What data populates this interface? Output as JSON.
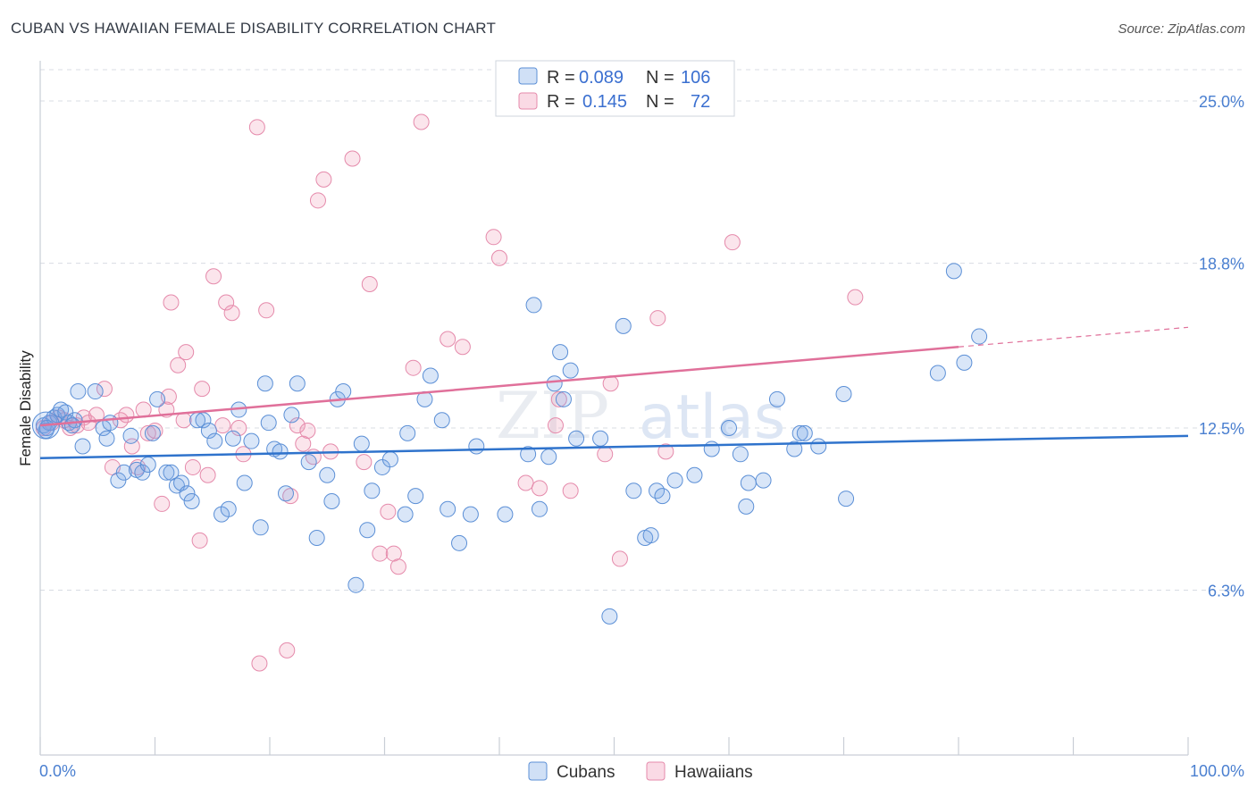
{
  "title": "CUBAN VS HAWAIIAN FEMALE DISABILITY CORRELATION CHART",
  "source": "Source: ZipAtlas.com",
  "colors": {
    "cubans_fill": "rgba(120,165,230,0.28)",
    "cubans_stroke": "#5b8fd6",
    "cubans_line": "#2f73cc",
    "hawaiians_fill": "rgba(240,150,180,0.25)",
    "hawaiians_stroke": "#e58aab",
    "hawaiians_line": "#e0709a",
    "grid": "#d8dce3",
    "axis_label": "#4a7fd0"
  },
  "legend": {
    "cubans": {
      "r_label": "R =",
      "r_value": "0.089",
      "n_label": "N =",
      "n_value": "106"
    },
    "hawaiians": {
      "r_label": "R =",
      "r_value": "0.145",
      "n_label": "N =",
      "n_value": "72"
    }
  },
  "chart_data": {
    "type": "scatter",
    "title": "CUBAN VS HAWAIIAN FEMALE DISABILITY CORRELATION CHART",
    "xlabel": "",
    "ylabel": "Female Disability",
    "xlim": [
      0,
      100
    ],
    "ylim": [
      0,
      26.3
    ],
    "x_tick_labels": [
      "0.0%",
      "100.0%"
    ],
    "y_ticks": [
      6.3,
      12.5,
      18.8,
      25.0
    ],
    "y_tick_labels": [
      "6.3%",
      "12.5%",
      "18.8%",
      "25.0%"
    ],
    "grid": "horizontal dashed",
    "legend_position": "top-center, bottom-center",
    "series": [
      {
        "name": "Cubans",
        "r": 0.089,
        "n": 106,
        "trend": {
          "x": [
            0,
            100
          ],
          "y": [
            11.35,
            12.2
          ]
        },
        "points": [
          [
            0.3,
            12.6
          ],
          [
            0.5,
            12.4
          ],
          [
            0.8,
            12.7
          ],
          [
            1.2,
            12.9
          ],
          [
            1.5,
            13.0
          ],
          [
            1.8,
            13.2
          ],
          [
            2.2,
            13.1
          ],
          [
            2.5,
            12.7
          ],
          [
            3.0,
            12.8
          ],
          [
            3.3,
            13.9
          ],
          [
            3.7,
            11.8
          ],
          [
            4.8,
            13.9
          ],
          [
            5.5,
            12.5
          ],
          [
            5.8,
            12.1
          ],
          [
            6.1,
            12.7
          ],
          [
            6.8,
            10.5
          ],
          [
            7.3,
            10.8
          ],
          [
            7.9,
            12.2
          ],
          [
            8.4,
            10.9
          ],
          [
            8.9,
            10.8
          ],
          [
            9.4,
            11.1
          ],
          [
            9.8,
            12.3
          ],
          [
            10.2,
            13.6
          ],
          [
            11.0,
            10.8
          ],
          [
            11.4,
            10.8
          ],
          [
            11.9,
            10.3
          ],
          [
            12.3,
            10.4
          ],
          [
            12.8,
            10.0
          ],
          [
            13.2,
            9.7
          ],
          [
            13.7,
            12.8
          ],
          [
            14.2,
            12.8
          ],
          [
            14.7,
            12.4
          ],
          [
            15.2,
            12.0
          ],
          [
            15.8,
            9.2
          ],
          [
            16.4,
            9.4
          ],
          [
            16.8,
            12.1
          ],
          [
            17.3,
            13.2
          ],
          [
            17.8,
            10.4
          ],
          [
            18.4,
            12.0
          ],
          [
            19.2,
            8.7
          ],
          [
            19.6,
            14.2
          ],
          [
            19.9,
            12.7
          ],
          [
            20.4,
            11.7
          ],
          [
            20.9,
            11.6
          ],
          [
            21.4,
            10.0
          ],
          [
            21.9,
            13.0
          ],
          [
            22.4,
            14.2
          ],
          [
            23.4,
            11.2
          ],
          [
            24.1,
            8.3
          ],
          [
            25.0,
            10.7
          ],
          [
            25.4,
            9.7
          ],
          [
            25.9,
            13.6
          ],
          [
            26.4,
            13.9
          ],
          [
            27.5,
            6.5
          ],
          [
            28.0,
            11.9
          ],
          [
            28.5,
            8.6
          ],
          [
            28.9,
            10.1
          ],
          [
            29.8,
            11.0
          ],
          [
            30.5,
            11.3
          ],
          [
            31.8,
            9.2
          ],
          [
            32.0,
            12.3
          ],
          [
            32.7,
            9.9
          ],
          [
            33.5,
            13.6
          ],
          [
            34.0,
            14.5
          ],
          [
            35.0,
            12.8
          ],
          [
            35.5,
            9.4
          ],
          [
            36.5,
            8.1
          ],
          [
            37.5,
            9.2
          ],
          [
            38.0,
            11.8
          ],
          [
            40.5,
            9.2
          ],
          [
            42.5,
            11.5
          ],
          [
            43.0,
            17.2
          ],
          [
            43.5,
            9.4
          ],
          [
            44.3,
            11.4
          ],
          [
            44.8,
            14.2
          ],
          [
            45.3,
            15.4
          ],
          [
            45.6,
            13.6
          ],
          [
            46.2,
            14.7
          ],
          [
            46.7,
            12.1
          ],
          [
            48.8,
            12.1
          ],
          [
            49.6,
            5.3
          ],
          [
            50.8,
            16.4
          ],
          [
            51.7,
            10.1
          ],
          [
            52.7,
            8.3
          ],
          [
            53.2,
            8.4
          ],
          [
            53.7,
            10.1
          ],
          [
            54.2,
            9.9
          ],
          [
            55.3,
            10.5
          ],
          [
            57.0,
            10.7
          ],
          [
            58.5,
            11.7
          ],
          [
            60.0,
            12.5
          ],
          [
            61.0,
            11.5
          ],
          [
            61.5,
            9.5
          ],
          [
            61.7,
            10.4
          ],
          [
            63.0,
            10.5
          ],
          [
            64.2,
            13.6
          ],
          [
            65.7,
            11.7
          ],
          [
            66.2,
            12.3
          ],
          [
            66.6,
            12.3
          ],
          [
            67.8,
            11.8
          ],
          [
            70.0,
            13.8
          ],
          [
            70.2,
            9.8
          ],
          [
            80.5,
            15.0
          ],
          [
            81.8,
            16.0
          ],
          [
            78.2,
            14.6
          ],
          [
            79.6,
            18.5
          ],
          [
            0.6,
            12.5
          ],
          [
            2.8,
            12.6
          ]
        ]
      },
      {
        "name": "Hawaiians",
        "r": 0.145,
        "n": 72,
        "trend": {
          "x": [
            0,
            80
          ],
          "y": [
            12.6,
            15.6
          ]
        },
        "trend_dashed": {
          "x": [
            80,
            100
          ],
          "y": [
            15.6,
            16.35
          ]
        },
        "points": [
          [
            0.3,
            12.5
          ],
          [
            1.0,
            12.7
          ],
          [
            1.6,
            12.9
          ],
          [
            2.1,
            12.8
          ],
          [
            2.6,
            12.5
          ],
          [
            3.2,
            12.6
          ],
          [
            3.8,
            12.9
          ],
          [
            4.2,
            12.7
          ],
          [
            4.9,
            13.0
          ],
          [
            5.6,
            14.0
          ],
          [
            6.3,
            11.0
          ],
          [
            7.0,
            12.8
          ],
          [
            7.5,
            13.0
          ],
          [
            8.0,
            11.8
          ],
          [
            8.5,
            11.0
          ],
          [
            9.0,
            13.2
          ],
          [
            9.4,
            12.3
          ],
          [
            10.0,
            12.4
          ],
          [
            10.6,
            9.6
          ],
          [
            11.0,
            13.2
          ],
          [
            11.2,
            13.7
          ],
          [
            11.4,
            17.3
          ],
          [
            12.0,
            14.9
          ],
          [
            12.5,
            12.8
          ],
          [
            12.7,
            15.4
          ],
          [
            13.3,
            11.0
          ],
          [
            13.9,
            8.2
          ],
          [
            14.1,
            14.0
          ],
          [
            14.6,
            10.7
          ],
          [
            15.1,
            18.3
          ],
          [
            15.9,
            12.6
          ],
          [
            16.2,
            17.3
          ],
          [
            16.7,
            16.9
          ],
          [
            17.3,
            12.5
          ],
          [
            17.7,
            11.5
          ],
          [
            18.9,
            24.0
          ],
          [
            19.1,
            3.5
          ],
          [
            19.7,
            17.0
          ],
          [
            21.5,
            4.0
          ],
          [
            21.8,
            9.9
          ],
          [
            22.4,
            12.6
          ],
          [
            22.9,
            11.9
          ],
          [
            23.3,
            12.4
          ],
          [
            23.8,
            11.4
          ],
          [
            24.2,
            21.2
          ],
          [
            24.7,
            22.0
          ],
          [
            25.3,
            11.6
          ],
          [
            27.2,
            22.8
          ],
          [
            28.2,
            11.2
          ],
          [
            28.7,
            18.0
          ],
          [
            29.6,
            7.7
          ],
          [
            30.3,
            9.3
          ],
          [
            30.8,
            7.7
          ],
          [
            31.2,
            7.2
          ],
          [
            32.5,
            14.8
          ],
          [
            35.5,
            15.9
          ],
          [
            36.8,
            15.6
          ],
          [
            39.5,
            19.8
          ],
          [
            40.0,
            19.0
          ],
          [
            42.3,
            10.4
          ],
          [
            43.5,
            10.2
          ],
          [
            44.9,
            12.6
          ],
          [
            45.2,
            13.6
          ],
          [
            46.2,
            10.1
          ],
          [
            49.2,
            11.5
          ],
          [
            49.7,
            14.2
          ],
          [
            50.5,
            7.5
          ],
          [
            53.8,
            16.7
          ],
          [
            54.5,
            11.6
          ],
          [
            60.3,
            19.6
          ],
          [
            71.0,
            17.5
          ],
          [
            33.2,
            24.2
          ]
        ]
      }
    ]
  },
  "bottom_legend": {
    "cubans": "Cubans",
    "hawaiians": "Hawaiians"
  },
  "watermark": "ZIPatlas"
}
